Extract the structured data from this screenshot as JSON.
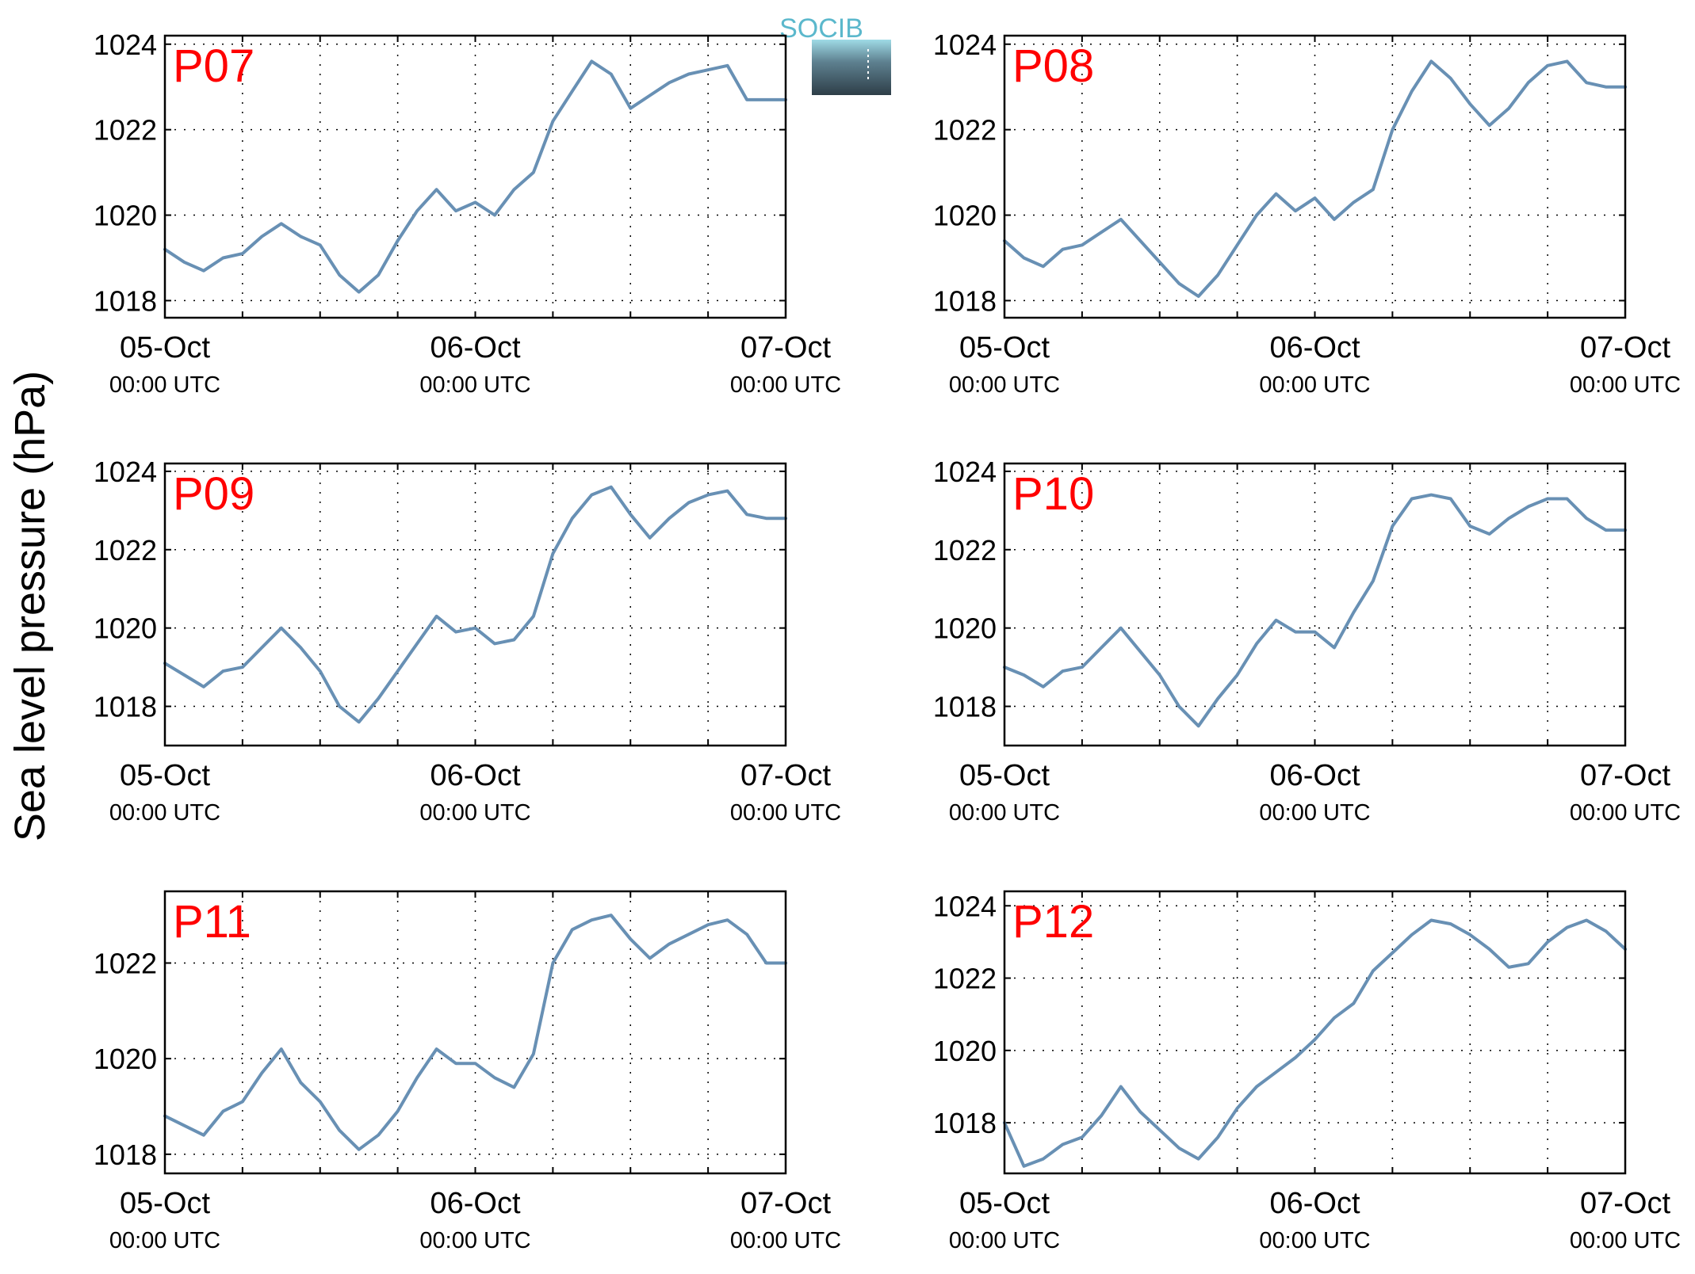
{
  "ylabel": "Sea level pressure (hPa)",
  "logo": {
    "text": "SOCIB",
    "color_top": "#5bb8cc",
    "color_bottom": "#2e3e48"
  },
  "colors": {
    "line": "#6890b4",
    "panel_label": "#ff0000",
    "grid": "#000000"
  },
  "chart_data": [
    {
      "type": "line",
      "label": "P07",
      "x": [
        0,
        1.5,
        3,
        4.5,
        6,
        7.5,
        9,
        10.5,
        12,
        13.5,
        15,
        16.5,
        18,
        19.5,
        21,
        22.5,
        24,
        25.5,
        27,
        28.5,
        30,
        31.5,
        33,
        34.5,
        36,
        37.5,
        39,
        40.5,
        42,
        43.5,
        45,
        46.5,
        48
      ],
      "y": [
        1019.2,
        1018.9,
        1018.7,
        1019.0,
        1019.1,
        1019.5,
        1019.8,
        1019.5,
        1019.3,
        1018.6,
        1018.2,
        1018.6,
        1019.4,
        1020.1,
        1020.6,
        1020.1,
        1020.3,
        1020.0,
        1020.6,
        1021.0,
        1022.2,
        1022.9,
        1023.6,
        1023.3,
        1022.5,
        1022.8,
        1023.1,
        1023.3,
        1023.4,
        1023.5,
        1022.7,
        1022.7,
        1022.7
      ],
      "ylim": [
        1017.6,
        1024.2
      ],
      "yticks": [
        "1018",
        "1020",
        "1022",
        "1024"
      ],
      "ytick_values": [
        1018,
        1020,
        1022,
        1024
      ]
    },
    {
      "type": "line",
      "label": "P08",
      "x": [
        0,
        1.5,
        3,
        4.5,
        6,
        7.5,
        9,
        10.5,
        12,
        13.5,
        15,
        16.5,
        18,
        19.5,
        21,
        22.5,
        24,
        25.5,
        27,
        28.5,
        30,
        31.5,
        33,
        34.5,
        36,
        37.5,
        39,
        40.5,
        42,
        43.5,
        45,
        46.5,
        48
      ],
      "y": [
        1019.4,
        1019.0,
        1018.8,
        1019.2,
        1019.3,
        1019.6,
        1019.9,
        1019.4,
        1018.9,
        1018.4,
        1018.1,
        1018.6,
        1019.3,
        1020.0,
        1020.5,
        1020.1,
        1020.4,
        1019.9,
        1020.3,
        1020.6,
        1022.0,
        1022.9,
        1023.6,
        1023.2,
        1022.6,
        1022.1,
        1022.5,
        1023.1,
        1023.5,
        1023.6,
        1023.1,
        1023.0,
        1023.0
      ],
      "ylim": [
        1017.6,
        1024.2
      ],
      "yticks": [
        "1018",
        "1020",
        "1022",
        "1024"
      ],
      "ytick_values": [
        1018,
        1020,
        1022,
        1024
      ]
    },
    {
      "type": "line",
      "label": "P09",
      "x": [
        0,
        1.5,
        3,
        4.5,
        6,
        7.5,
        9,
        10.5,
        12,
        13.5,
        15,
        16.5,
        18,
        19.5,
        21,
        22.5,
        24,
        25.5,
        27,
        28.5,
        30,
        31.5,
        33,
        34.5,
        36,
        37.5,
        39,
        40.5,
        42,
        43.5,
        45,
        46.5,
        48
      ],
      "y": [
        1019.1,
        1018.8,
        1018.5,
        1018.9,
        1019.0,
        1019.5,
        1020.0,
        1019.5,
        1018.9,
        1018.0,
        1017.6,
        1018.2,
        1018.9,
        1019.6,
        1020.3,
        1019.9,
        1020.0,
        1019.6,
        1019.7,
        1020.3,
        1021.9,
        1022.8,
        1023.4,
        1023.6,
        1022.9,
        1022.3,
        1022.8,
        1023.2,
        1023.4,
        1023.5,
        1022.9,
        1022.8,
        1022.8
      ],
      "ylim": [
        1017.0,
        1024.2
      ],
      "yticks": [
        "1018",
        "1020",
        "1022",
        "1024"
      ],
      "ytick_values": [
        1018,
        1020,
        1022,
        1024
      ]
    },
    {
      "type": "line",
      "label": "P10",
      "x": [
        0,
        1.5,
        3,
        4.5,
        6,
        7.5,
        9,
        10.5,
        12,
        13.5,
        15,
        16.5,
        18,
        19.5,
        21,
        22.5,
        24,
        25.5,
        27,
        28.5,
        30,
        31.5,
        33,
        34.5,
        36,
        37.5,
        39,
        40.5,
        42,
        43.5,
        45,
        46.5,
        48
      ],
      "y": [
        1019.0,
        1018.8,
        1018.5,
        1018.9,
        1019.0,
        1019.5,
        1020.0,
        1019.4,
        1018.8,
        1018.0,
        1017.5,
        1018.2,
        1018.8,
        1019.6,
        1020.2,
        1019.9,
        1019.9,
        1019.5,
        1020.4,
        1021.2,
        1022.6,
        1023.3,
        1023.4,
        1023.3,
        1022.6,
        1022.4,
        1022.8,
        1023.1,
        1023.3,
        1023.3,
        1022.8,
        1022.5,
        1022.5
      ],
      "ylim": [
        1017.0,
        1024.2
      ],
      "yticks": [
        "1018",
        "1020",
        "1022",
        "1024"
      ],
      "ytick_values": [
        1018,
        1020,
        1022,
        1024
      ]
    },
    {
      "type": "line",
      "label": "P11",
      "x": [
        0,
        1.5,
        3,
        4.5,
        6,
        7.5,
        9,
        10.5,
        12,
        13.5,
        15,
        16.5,
        18,
        19.5,
        21,
        22.5,
        24,
        25.5,
        27,
        28.5,
        30,
        31.5,
        33,
        34.5,
        36,
        37.5,
        39,
        40.5,
        42,
        43.5,
        45,
        46.5,
        48
      ],
      "y": [
        1018.8,
        1018.6,
        1018.4,
        1018.9,
        1019.1,
        1019.7,
        1020.2,
        1019.5,
        1019.1,
        1018.5,
        1018.1,
        1018.4,
        1018.9,
        1019.6,
        1020.2,
        1019.9,
        1019.9,
        1019.6,
        1019.4,
        1020.1,
        1022.0,
        1022.7,
        1022.9,
        1023.0,
        1022.5,
        1022.1,
        1022.4,
        1022.6,
        1022.8,
        1022.9,
        1022.6,
        1022.0,
        1022.0
      ],
      "ylim": [
        1017.6,
        1023.5
      ],
      "yticks": [
        "1018",
        "1020",
        "1022"
      ],
      "ytick_values": [
        1018,
        1020,
        1022
      ]
    },
    {
      "type": "line",
      "label": "P12",
      "x": [
        0,
        1.5,
        3,
        4.5,
        6,
        7.5,
        9,
        10.5,
        12,
        13.5,
        15,
        16.5,
        18,
        19.5,
        21,
        22.5,
        24,
        25.5,
        27,
        28.5,
        30,
        31.5,
        33,
        34.5,
        36,
        37.5,
        39,
        40.5,
        42,
        43.5,
        45,
        46.5,
        48
      ],
      "y": [
        1018.0,
        1016.8,
        1017.0,
        1017.4,
        1017.6,
        1018.2,
        1019.0,
        1018.3,
        1017.8,
        1017.3,
        1017.0,
        1017.6,
        1018.4,
        1019.0,
        1019.4,
        1019.8,
        1020.3,
        1020.9,
        1021.3,
        1022.2,
        1022.7,
        1023.2,
        1023.6,
        1023.5,
        1023.2,
        1022.8,
        1022.3,
        1022.4,
        1023.0,
        1023.4,
        1023.6,
        1023.3,
        1022.8
      ],
      "ylim": [
        1016.6,
        1024.4
      ],
      "yticks": [
        "1018",
        "1020",
        "1022",
        "1024"
      ],
      "ytick_values": [
        1018,
        1020,
        1022,
        1024
      ]
    }
  ],
  "xaxis": {
    "range": [
      0,
      48
    ],
    "tick_values": [
      0,
      24,
      48
    ],
    "tick_labels": [
      "05-Oct",
      "06-Oct",
      "07-Oct"
    ],
    "tick_sublabels": [
      "00:00 UTC",
      "00:00 UTC",
      "00:00 UTC"
    ],
    "grid_values": [
      0,
      6,
      12,
      18,
      24,
      30,
      36,
      42,
      48
    ]
  }
}
